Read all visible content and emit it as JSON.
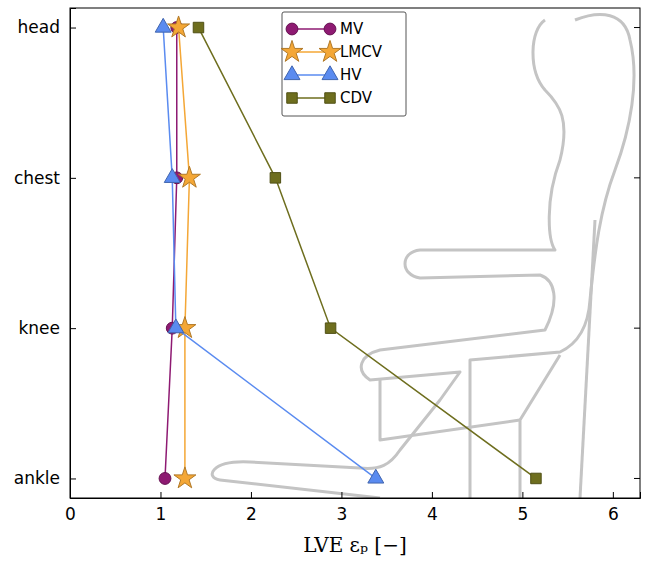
{
  "chart_data": {
    "type": "line",
    "orientation": "horizontal",
    "categories": [
      "head",
      "chest",
      "knee",
      "ankle"
    ],
    "x_label": "LVE εₚ [−]",
    "xlim": [
      0,
      6.3
    ],
    "xticks": [
      0,
      1,
      2,
      3,
      4,
      5,
      6
    ],
    "legend": "upper center",
    "series": [
      {
        "name": "MV",
        "color": "#8e1a72",
        "marker": "circle",
        "values": [
          1.18,
          1.18,
          1.13,
          1.05
        ]
      },
      {
        "name": "LMCV",
        "color": "#f4a736",
        "marker": "star",
        "values": [
          1.2,
          1.32,
          1.27,
          1.27
        ]
      },
      {
        "name": "HV",
        "color": "#5a8bf0",
        "marker": "triangle",
        "values": [
          1.03,
          1.13,
          1.17,
          3.38
        ]
      },
      {
        "name": "CDV",
        "color": "#6e6e1e",
        "marker": "square",
        "values": [
          1.42,
          2.27,
          2.88,
          5.15
        ]
      }
    ]
  }
}
